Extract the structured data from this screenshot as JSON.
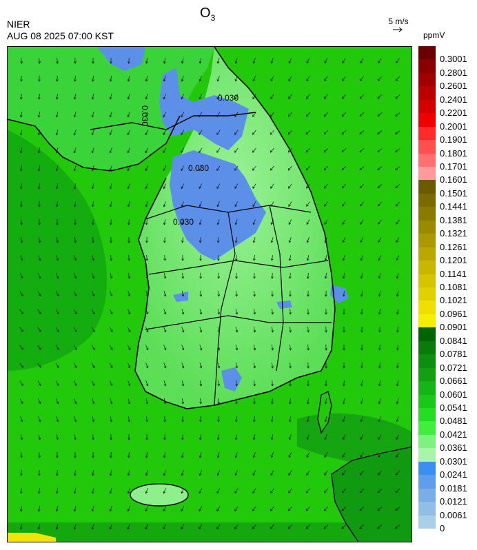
{
  "header": {
    "agency": "NIER",
    "timestamp": "AUG 08 2025 07:00 KST",
    "title_main": "O",
    "title_sub": "3",
    "wind_reference": "5 m/s",
    "units": "ppmV"
  },
  "map": {
    "contour_labels": [
      "0.030",
      "0.030",
      "0.030",
      "0.030"
    ],
    "colors": {
      "sea": "#22c80a",
      "sea_dark": "#0d9a10",
      "land_light": "#8ef08a",
      "land_mid": "#5cde57",
      "low_blue": "#5b8fe8",
      "boundary": "#000000",
      "coast_yellow": "#f2e600"
    }
  },
  "legend": {
    "labels": [
      "0.3001",
      "0.2801",
      "0.2601",
      "0.2401",
      "0.2201",
      "0.2001",
      "0.1901",
      "0.1801",
      "0.1701",
      "0.1601",
      "0.1501",
      "0.1441",
      "0.1381",
      "0.1321",
      "0.1261",
      "0.1201",
      "0.1141",
      "0.1081",
      "0.1021",
      "0.0961",
      "0.0901",
      "0.0841",
      "0.0781",
      "0.0721",
      "0.0661",
      "0.0601",
      "0.0541",
      "0.0481",
      "0.0421",
      "0.0361",
      "0.0301",
      "0.0241",
      "0.0181",
      "0.0121",
      "0.0061",
      "0"
    ],
    "colors": [
      "#6b0000",
      "#880000",
      "#a00000",
      "#bb0000",
      "#d40000",
      "#f00000",
      "#ff2a2a",
      "#ff5050",
      "#ff7070",
      "#ff9a9a",
      "#6a5a00",
      "#7a6a00",
      "#8a7a00",
      "#9a8a00",
      "#aa9900",
      "#baa800",
      "#c8b600",
      "#d6c400",
      "#e2d100",
      "#f0de00",
      "#f4ee00",
      "#006400",
      "#0a7a0a",
      "#0e8e0e",
      "#12a012",
      "#16b416",
      "#1ac81a",
      "#24dc24",
      "#40ee40",
      "#7ef27e",
      "#a8f4a8",
      "#3b8ff0",
      "#5f9eea",
      "#7aaee6",
      "#92bee6",
      "#a8cfe8"
    ]
  }
}
